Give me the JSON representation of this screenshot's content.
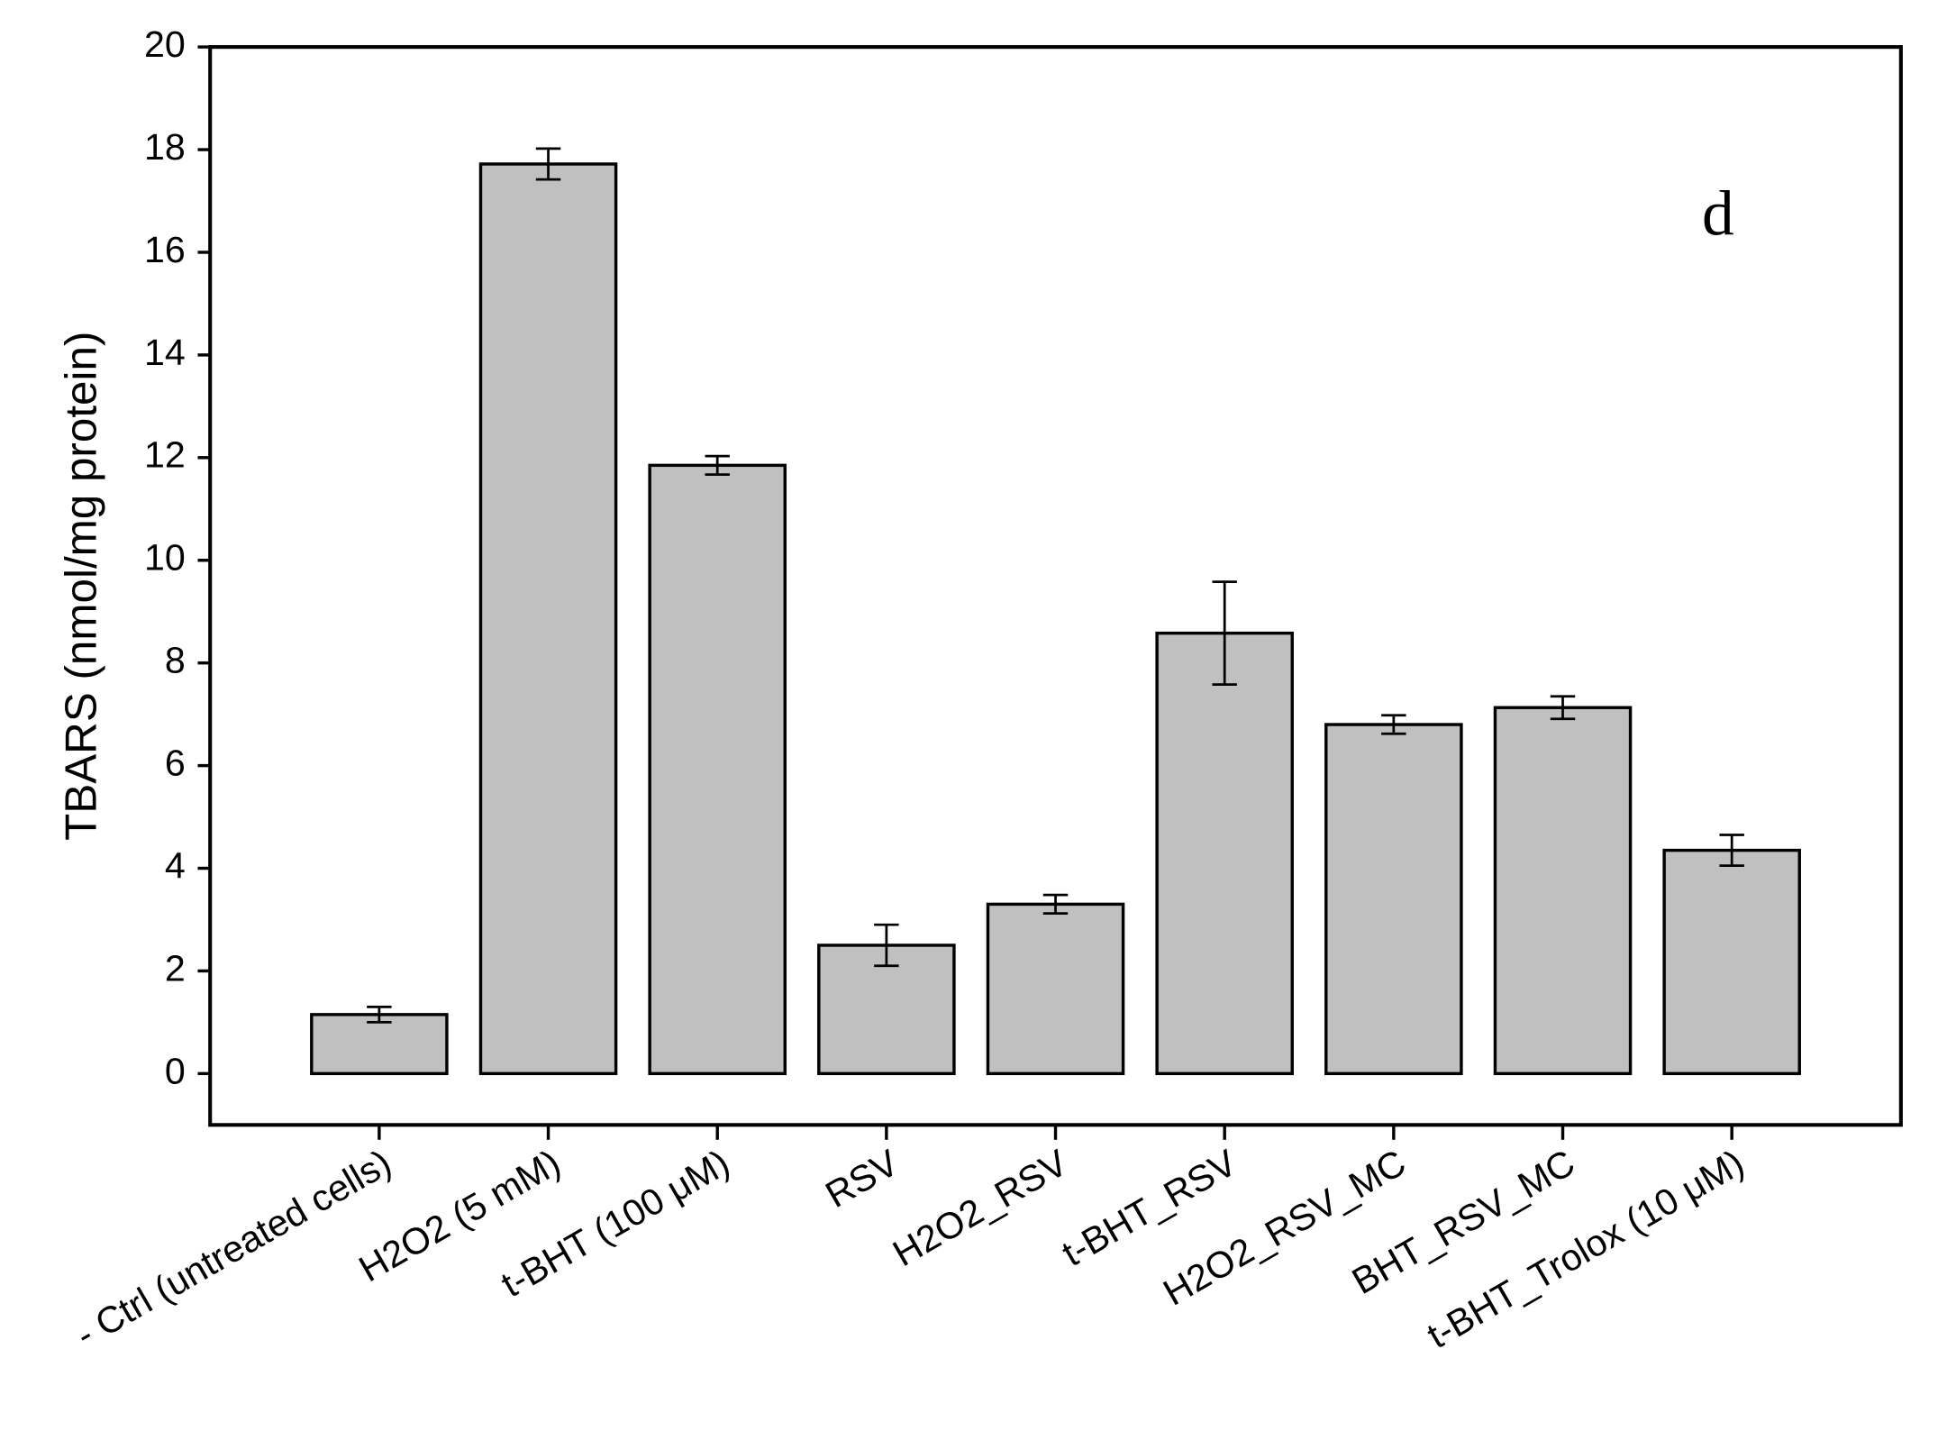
{
  "chart_data": {
    "type": "bar",
    "y_label": "TBARS (nmol/mg protein)",
    "annotation": "d",
    "categories": [
      "- Ctrl (untreated cells)",
      "H2O2 (5 mM)",
      "t-BHT (100 μM)",
      "RSV",
      "H2O2_RSV",
      "t-BHT_RSV",
      "H2O2_RSV_MC",
      "BHT_RSV_MC",
      "t-BHT_Trolox (10 μM)"
    ],
    "series": [
      {
        "color": "#c0c0c0",
        "values": [
          1.15,
          17.72,
          11.85,
          2.5,
          3.3,
          8.58,
          6.8,
          7.13,
          4.35
        ],
        "errors": [
          0.15,
          0.3,
          0.18,
          0.4,
          0.18,
          1.0,
          0.18,
          0.22,
          0.3
        ]
      }
    ],
    "ylim": [
      -1,
      20
    ],
    "yticks": [
      0,
      2,
      4,
      6,
      8,
      10,
      12,
      14,
      16,
      18,
      20
    ]
  }
}
